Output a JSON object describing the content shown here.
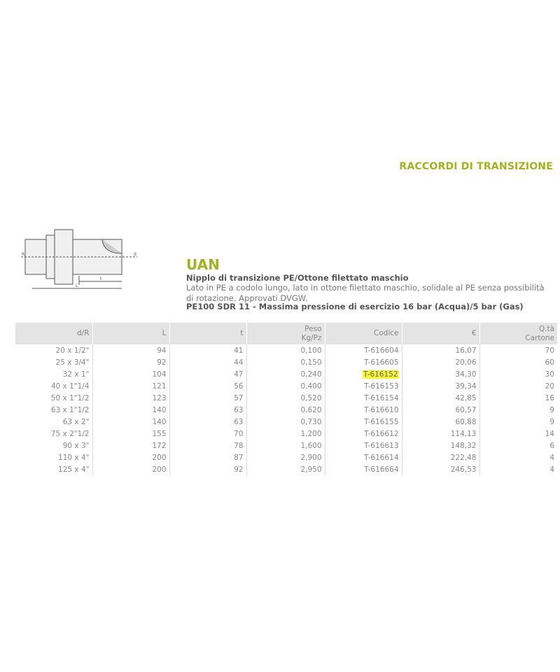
{
  "section_title": "RACCORDI DI TRANSIZIONE",
  "product": {
    "code": "UAN",
    "subtitle": "Nipplo di transizione PE/Ottone filettato maschio",
    "description": "Lato in PE a codolo lungo, lato in ottone filettato maschio, solidale al PE senza possibilità di rotazione. Approvati DVGW.",
    "spec": "PE100 SDR 11 - Massima pressione di esercizio 16 bar (Acqua)/5 bar (Gas)"
  },
  "diagram": {
    "labels": [
      "R",
      "d",
      "t",
      "L"
    ]
  },
  "table": {
    "headers": [
      "d/R",
      "L",
      "t",
      "Peso Kg/Pz",
      "Codice",
      "€",
      "Q.tà Cartone"
    ],
    "header_lines": [
      [
        "d/R"
      ],
      [
        "L"
      ],
      [
        "t"
      ],
      [
        "Peso",
        "Kg/Pz"
      ],
      [
        "Codice"
      ],
      [
        "€"
      ],
      [
        "Q.tà",
        "Cartone"
      ]
    ],
    "rows": [
      [
        "20 x 1/2\"",
        "94",
        "41",
        "0,100",
        "T-616604",
        "16,07",
        "70"
      ],
      [
        "25 x 3/4\"",
        "92",
        "44",
        "0,150",
        "T-616605",
        "20,06",
        "60"
      ],
      [
        "32 x 1\"",
        "104",
        "47",
        "0,240",
        "T-616152",
        "34,30",
        "30"
      ],
      [
        "40 x 1\"1/4",
        "121",
        "56",
        "0,400",
        "T-616153",
        "39,34",
        "20"
      ],
      [
        "50 x 1\"1/2",
        "123",
        "57",
        "0,520",
        "T-616154",
        "42,85",
        "16"
      ],
      [
        "63 x 1\"1/2",
        "140",
        "63",
        "0,620",
        "T-616610",
        "60,57",
        "9"
      ],
      [
        "63 x 2\"",
        "140",
        "63",
        "0,730",
        "T-616155",
        "60,88",
        "9"
      ],
      [
        "75 x 2\"1/2",
        "155",
        "70",
        "1,200",
        "T-616612",
        "114,13",
        "14"
      ],
      [
        "90 x 3\"",
        "172",
        "78",
        "1,600",
        "T-616613",
        "148,32",
        "6"
      ],
      [
        "110 x 4\"",
        "200",
        "87",
        "2,900",
        "T-616614",
        "222,48",
        "4"
      ],
      [
        "125 x 4\"",
        "200",
        "92",
        "2,950",
        "T-616664",
        "246,53",
        "4"
      ]
    ],
    "highlighted_code": "T-616152",
    "highlight_color": "#f5f531"
  },
  "colors": {
    "accent": "#a3b320"
  }
}
